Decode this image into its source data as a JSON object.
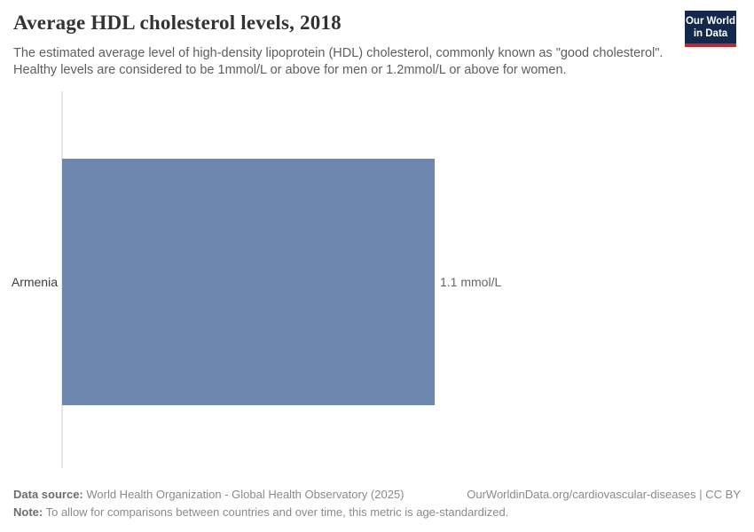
{
  "header": {
    "title": "Average HDL cholesterol levels, 2018",
    "subtitle": "The estimated average level of high-density lipoprotein (HDL) cholesterol, commonly known as \"good cholesterol\". Healthy levels are considered to be 1mmol/L or above for men or 1.2mmol/L or above for women.",
    "logo": {
      "line1": "Our World",
      "line2": "in Data",
      "bg_color": "#12294d",
      "stripe_color": "#c0282d"
    }
  },
  "chart_data": {
    "type": "bar",
    "orientation": "horizontal",
    "title": "Average HDL cholesterol levels, 2018",
    "categories": [
      "Armenia"
    ],
    "values": [
      1.1
    ],
    "unit": "mmol/L",
    "value_labels": [
      "1.1 mmol/L"
    ],
    "xlim": [
      0,
      1.1
    ],
    "bar_color": "#6e87af",
    "grid": false,
    "legend": "none"
  },
  "footer": {
    "data_source_label": "Data source:",
    "data_source_text": " World Health Organization - Global Health Observatory (2025)",
    "link_text": "OurWorldinData.org/cardiovascular-diseases | CC BY",
    "note_label": "Note:",
    "note_text": " To allow for comparisons between countries and over time, this metric is age-standardized."
  }
}
